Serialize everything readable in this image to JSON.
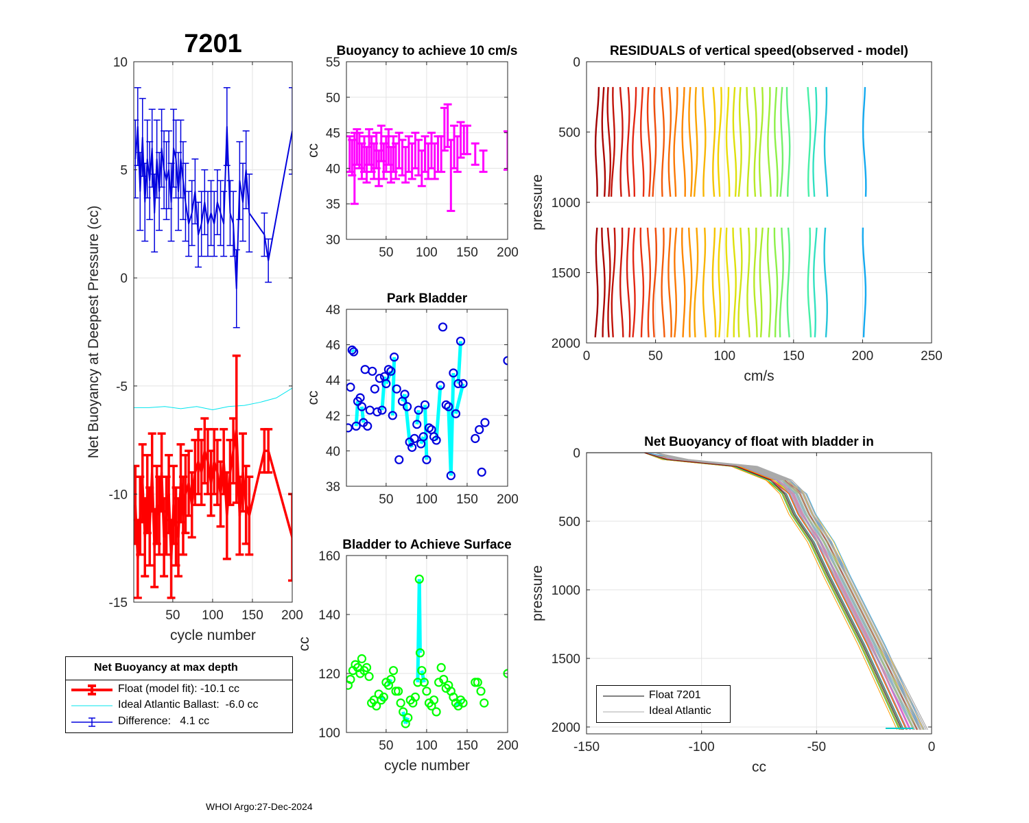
{
  "figure": {
    "float_id": "7201",
    "footer": "WHOI Argo:27-Dec-2024"
  },
  "colors": {
    "float": "#ff0000",
    "ideal": "#00e5ee",
    "difference": "#0000dd",
    "buoyancy10": "#ff00ff",
    "park_marker": "#0000dd",
    "park_line": "#00ffff",
    "surface_marker": "#00ff00",
    "surface_line": "#00ffff"
  },
  "legend_main": {
    "title": "Net Buoyancy at max depth",
    "items": [
      {
        "label": "Float (model fit): -10.1 cc",
        "color": "#ff0000"
      },
      {
        "label": "Ideal Atlantic Ballast:  -6.0 cc",
        "color": "#00e5ee"
      },
      {
        "label": "Difference:   4.1 cc",
        "color": "#0000dd"
      }
    ]
  },
  "legend_profile": {
    "items": [
      {
        "label": "Float 7201",
        "color": "#000000"
      },
      {
        "label": "Ideal Atlantic",
        "color": "#aaaaaa"
      }
    ]
  },
  "chart_data": [
    {
      "id": "net_buoyancy",
      "type": "line",
      "title": "7201",
      "xlabel": "cycle number",
      "ylabel": "Net Buoyancy at Deepest Pressure (cc)",
      "xlim": [
        1,
        200
      ],
      "ylim": [
        -15,
        10
      ],
      "xticks": [
        50,
        100,
        150,
        200
      ],
      "yticks": [
        -15,
        -10,
        -5,
        0,
        5,
        10
      ],
      "series": [
        {
          "name": "Float (model fit)",
          "x": [
            3,
            6,
            9,
            12,
            15,
            18,
            21,
            24,
            27,
            30,
            33,
            36,
            39,
            42,
            45,
            48,
            51,
            54,
            57,
            60,
            63,
            66,
            70,
            74,
            78,
            82,
            86,
            90,
            94,
            98,
            102,
            106,
            110,
            114,
            118,
            122,
            126,
            130,
            134,
            138,
            142,
            146,
            165,
            170,
            200
          ],
          "y": [
            -10.5,
            -13,
            -11,
            -9.5,
            -12,
            -10,
            -11.5,
            -9,
            -12.5,
            -10.5,
            -11,
            -9,
            -12,
            -11,
            -10,
            -13,
            -10.5,
            -11.5,
            -12,
            -9.5,
            -11,
            -10,
            -9.5,
            -10.5,
            -9,
            -8.5,
            -9,
            -8,
            -8.5,
            -9.5,
            -8.5,
            -9,
            -10,
            -8.5,
            -11,
            -9,
            -8,
            -7,
            -11,
            -9,
            -10.5,
            -11,
            -8,
            -8,
            -12
          ],
          "err": [
            1.8,
            1.8,
            1.8,
            1.8,
            1.8,
            1.8,
            1.8,
            1.8,
            1.8,
            1.8,
            1.8,
            1.8,
            1.8,
            1.8,
            1.8,
            1.8,
            1.8,
            1.8,
            1.8,
            1.8,
            1.8,
            1.8,
            1.5,
            1.5,
            1.5,
            1.5,
            1.5,
            1.5,
            1.5,
            1.5,
            1.5,
            1.5,
            1.5,
            1.5,
            2.0,
            1.5,
            1.5,
            3.4,
            1.8,
            1.8,
            1.8,
            1.8,
            1.0,
            1.0,
            2.0
          ]
        },
        {
          "name": "Ideal Atlantic Ballast",
          "x": [
            1,
            20,
            40,
            60,
            80,
            100,
            120,
            140,
            160,
            180,
            200
          ],
          "y": [
            -6.0,
            -6.0,
            -5.95,
            -6.05,
            -5.95,
            -6.1,
            -5.95,
            -5.9,
            -5.75,
            -5.55,
            -5.1
          ]
        },
        {
          "name": "Difference",
          "x": [
            3,
            6,
            9,
            12,
            15,
            18,
            21,
            24,
            27,
            30,
            33,
            36,
            39,
            42,
            45,
            48,
            51,
            54,
            57,
            60,
            63,
            66,
            70,
            74,
            78,
            82,
            86,
            90,
            94,
            98,
            102,
            106,
            110,
            114,
            118,
            122,
            126,
            130,
            134,
            138,
            142,
            146,
            165,
            170,
            200
          ],
          "y": [
            5.5,
            7,
            4,
            6.5,
            3.5,
            5.5,
            4.5,
            6,
            3,
            5.5,
            4,
            6,
            5,
            4.5,
            5,
            3.5,
            6,
            5.5,
            4,
            5.5,
            4.5,
            3.5,
            2.5,
            3,
            4,
            2,
            2.5,
            3.5,
            2.5,
            3,
            2.5,
            3.5,
            3,
            2.5,
            7,
            3,
            2.5,
            -0.5,
            4.5,
            3.5,
            5,
            3,
            2,
            0.8,
            6.8
          ],
          "err": [
            1.8,
            1.8,
            1.8,
            1.8,
            1.8,
            1.8,
            1.8,
            1.8,
            1.8,
            1.8,
            1.8,
            1.8,
            1.8,
            1.8,
            1.8,
            1.8,
            1.8,
            1.8,
            1.8,
            1.8,
            1.8,
            1.8,
            1.5,
            1.5,
            1.5,
            1.5,
            1.5,
            1.5,
            1.5,
            1.5,
            1.5,
            1.5,
            1.5,
            1.5,
            1.8,
            1.5,
            1.5,
            1.8,
            1.8,
            1.8,
            1.8,
            1.8,
            1.0,
            1.0,
            2.0
          ]
        }
      ]
    },
    {
      "id": "buoyancy_10cms",
      "type": "scatter",
      "title": "Buoyancy to achieve 10 cm/s",
      "xlabel": "",
      "ylabel": "cc",
      "xlim": [
        1,
        200
      ],
      "ylim": [
        30,
        55
      ],
      "xticks": [
        50,
        100,
        150,
        200
      ],
      "yticks": [
        30,
        35,
        40,
        45,
        50,
        55
      ],
      "series": [
        {
          "name": "Buoyancy",
          "x": [
            5,
            8,
            11,
            14,
            17,
            20,
            23,
            26,
            29,
            32,
            35,
            38,
            41,
            44,
            47,
            50,
            53,
            56,
            59,
            62,
            66,
            70,
            74,
            78,
            82,
            86,
            90,
            94,
            98,
            102,
            106,
            110,
            114,
            118,
            122,
            126,
            130,
            134,
            138,
            142,
            146,
            150,
            160,
            170,
            200
          ],
          "y": [
            42,
            41.5,
            40,
            43,
            42.5,
            41,
            42,
            40.5,
            43,
            42,
            41,
            42.5,
            40,
            43.5,
            41,
            42,
            43,
            40.5,
            42,
            41,
            42.5,
            41.5,
            40.5,
            42,
            41,
            42.5,
            41.5,
            40,
            42,
            41,
            42.5,
            41,
            42,
            42,
            45.5,
            46,
            39,
            43,
            42,
            44,
            44,
            44,
            42,
            41,
            42.5
          ],
          "err": [
            2.5,
            2.5,
            5,
            2.5,
            2.5,
            2.5,
            2.5,
            2.5,
            2.5,
            2.5,
            2.5,
            2.5,
            2.5,
            2.5,
            2.5,
            2.5,
            2.5,
            2.5,
            2.5,
            2.5,
            2.5,
            2.5,
            2.5,
            2.5,
            2.5,
            2.5,
            2.5,
            2.5,
            2.5,
            2.5,
            2.5,
            2.5,
            2.5,
            2.5,
            3,
            3,
            5,
            3,
            2.5,
            2.5,
            2,
            2,
            1.5,
            1.5,
            2.7
          ]
        }
      ]
    },
    {
      "id": "park_bladder",
      "type": "scatter",
      "title": "Park Bladder",
      "xlabel": "",
      "ylabel": "cc",
      "xlim": [
        1,
        200
      ],
      "ylim": [
        38,
        48
      ],
      "xticks": [
        50,
        100,
        150,
        200
      ],
      "yticks": [
        38,
        40,
        42,
        44,
        46,
        48
      ],
      "series": [
        {
          "name": "Park",
          "x": [
            3,
            6,
            8,
            10,
            13,
            15,
            18,
            20,
            22,
            24,
            27,
            30,
            33,
            36,
            39,
            42,
            45,
            48,
            50,
            53,
            56,
            58,
            60,
            63,
            66,
            70,
            73,
            76,
            79,
            82,
            85,
            88,
            90,
            93,
            96,
            98,
            100,
            103,
            106,
            109,
            112,
            117,
            120,
            124,
            127,
            130,
            133,
            136,
            139,
            142,
            145,
            160,
            165,
            168,
            172,
            200
          ],
          "y": [
            41.3,
            43.6,
            45.7,
            45.6,
            41.4,
            42.8,
            43.0,
            42.5,
            41.6,
            44.6,
            41.4,
            42.3,
            44.5,
            43.5,
            42.2,
            44.1,
            42.3,
            44.2,
            43.8,
            44.6,
            44.5,
            42.0,
            45.3,
            43.5,
            39.5,
            42.8,
            43.2,
            42.5,
            40.5,
            40.2,
            40.7,
            41.5,
            42.3,
            40.4,
            40.8,
            42.6,
            39.5,
            41.3,
            41.2,
            40.8,
            40.6,
            43.7,
            47.0,
            42.6,
            42.5,
            38.6,
            44.4,
            42.1,
            43.8,
            46.2,
            43.8,
            40.7,
            41.2,
            38.8,
            41.6,
            45.1
          ]
        }
      ]
    },
    {
      "id": "bladder_surface",
      "type": "scatter",
      "title": "Bladder to Achieve Surface",
      "xlabel": "cycle number",
      "ylabel": "cc",
      "xlim": [
        1,
        200
      ],
      "ylim": [
        100,
        160
      ],
      "xticks": [
        50,
        100,
        150,
        200
      ],
      "yticks": [
        100,
        120,
        140,
        160
      ],
      "series": [
        {
          "name": "Surface",
          "x": [
            3,
            6,
            9,
            12,
            15,
            18,
            20,
            23,
            26,
            29,
            32,
            35,
            38,
            41,
            44,
            47,
            50,
            53,
            56,
            59,
            62,
            65,
            68,
            71,
            74,
            77,
            80,
            83,
            86,
            89,
            91,
            92,
            94,
            97,
            100,
            103,
            106,
            109,
            112,
            115,
            118,
            121,
            124,
            127,
            130,
            133,
            136,
            139,
            142,
            145,
            160,
            163,
            167,
            171,
            200
          ],
          "y": [
            116,
            118,
            121,
            123,
            122,
            120,
            125,
            121,
            122,
            119,
            110,
            111,
            109,
            113,
            111,
            112,
            117,
            116,
            118,
            121,
            114,
            114,
            110,
            107,
            103,
            105,
            111,
            110,
            112,
            117,
            152,
            127,
            121,
            117,
            114,
            110,
            109,
            111,
            107,
            117,
            122,
            118,
            115,
            116,
            114,
            112,
            110,
            109,
            111,
            110,
            117,
            117,
            114,
            110,
            120
          ]
        }
      ]
    },
    {
      "id": "residuals",
      "type": "line",
      "title": "RESIDUALS of vertical speed(observed - model)",
      "xlabel": "cm/s",
      "ylabel": "pressure",
      "xlim": [
        0,
        250
      ],
      "ylim": [
        2000,
        0
      ],
      "xticks": [
        0,
        50,
        100,
        150,
        200,
        250
      ],
      "yticks": [
        0,
        500,
        1000,
        1500,
        2000
      ],
      "series": [
        {
          "name": "profile segments",
          "x_offsets": [
            8,
            12,
            16,
            20,
            25,
            30,
            35,
            40,
            45,
            50,
            55,
            60,
            65,
            70,
            75,
            80,
            85,
            92,
            97,
            102,
            107,
            112,
            117,
            122,
            127,
            132,
            137,
            142,
            146,
            161,
            166,
            173,
            201
          ],
          "depth_ranges": [
            [
              180,
              990
            ],
            [
              1180,
              1990
            ]
          ]
        }
      ]
    },
    {
      "id": "net_buoyancy_profile",
      "type": "line",
      "title": "Net Buoyancy of float with bladder in",
      "xlabel": "cc",
      "ylabel": "pressure",
      "xlim": [
        -150,
        0
      ],
      "ylim": [
        2050,
        0
      ],
      "xticks": [
        -150,
        -100,
        -50,
        0
      ],
      "yticks": [
        0,
        500,
        1000,
        1500,
        2000
      ],
      "series": [
        {
          "name": "Float 7201",
          "x": [
            -150,
            -125,
            -115,
            -85,
            -70,
            -64,
            -60,
            -52,
            -45,
            -30,
            -13
          ],
          "y": [
            0,
            0,
            50,
            100,
            200,
            300,
            450,
            650,
            900,
            1400,
            2020
          ]
        },
        {
          "name": "Ideal Atlantic",
          "x": [
            -150,
            -120,
            -110,
            -80,
            -65,
            -59,
            -55,
            -48,
            -40,
            -25,
            -6
          ],
          "y": [
            0,
            0,
            50,
            100,
            200,
            300,
            450,
            650,
            900,
            1400,
            2020
          ]
        }
      ]
    }
  ]
}
